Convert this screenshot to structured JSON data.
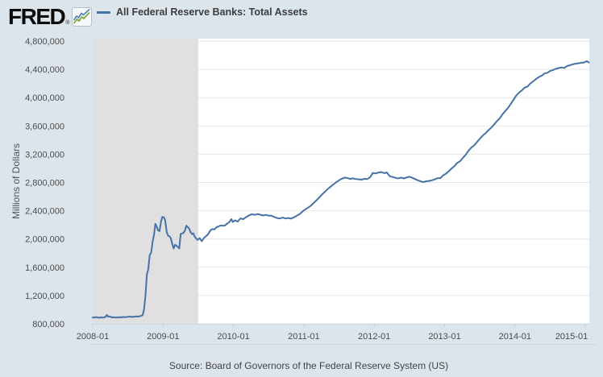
{
  "header": {
    "logo_text": "FRED",
    "logo_registered": "®",
    "legend": {
      "series_label": "All Federal Reserve Banks: Total Assets"
    }
  },
  "footer": {
    "source_text": "Source: Board of Governors of the Federal Reserve System (US)"
  },
  "chart_data": {
    "type": "line",
    "title": "All Federal Reserve Banks: Total Assets",
    "ylabel": "Millions of Dollars",
    "xlabel": "",
    "x_unit": "decimal_year",
    "xlim": [
      2008.0,
      2015.06
    ],
    "ylim": [
      800000,
      4800000
    ],
    "grid": true,
    "legend_position": "top-left",
    "colors": {
      "line": "#4572a7",
      "recession_band": "#e0e0e0",
      "gridline": "#e6e6e6",
      "plot_bg": "#ffffff",
      "page_bg": "#dce4ec",
      "axis_line": "#cdd6de",
      "tick": "#c3ced9",
      "tick_label": "#4d4d4d",
      "bottom_rule": "#cbd7e1"
    },
    "y_ticks": [
      {
        "v": 800000,
        "label": "800,000"
      },
      {
        "v": 1200000,
        "label": "1,200,000"
      },
      {
        "v": 1600000,
        "label": "1,600,000"
      },
      {
        "v": 2000000,
        "label": "2,000,000"
      },
      {
        "v": 2400000,
        "label": "2,400,000"
      },
      {
        "v": 2800000,
        "label": "2,800,000"
      },
      {
        "v": 3200000,
        "label": "3,200,000"
      },
      {
        "v": 3600000,
        "label": "3,600,000"
      },
      {
        "v": 4000000,
        "label": "4,000,000"
      },
      {
        "v": 4400000,
        "label": "4,400,000"
      },
      {
        "v": 4800000,
        "label": "4,800,000"
      }
    ],
    "x_ticks": [
      {
        "t": 2008.0,
        "label": "2008-01"
      },
      {
        "t": 2009.0,
        "label": "2009-01"
      },
      {
        "t": 2010.0,
        "label": "2010-01"
      },
      {
        "t": 2011.0,
        "label": "2011-01"
      },
      {
        "t": 2012.0,
        "label": "2012-01"
      },
      {
        "t": 2013.0,
        "label": "2013-01"
      },
      {
        "t": 2014.0,
        "label": "2014-01"
      },
      {
        "t": 2015.0,
        "label": "2015-01"
      }
    ],
    "recession_bands": [
      {
        "start": 2007.917,
        "end": 2009.5
      }
    ],
    "series": [
      {
        "name": "All Federal Reserve Banks: Total Assets",
        "color": "#4572a7",
        "points": [
          [
            2008.0,
            891000
          ],
          [
            2008.02,
            888000
          ],
          [
            2008.04,
            896000
          ],
          [
            2008.06,
            891000
          ],
          [
            2008.08,
            889000
          ],
          [
            2008.1,
            886000
          ],
          [
            2008.12,
            893000
          ],
          [
            2008.14,
            888000
          ],
          [
            2008.16,
            891000
          ],
          [
            2008.18,
            897000
          ],
          [
            2008.2,
            925000
          ],
          [
            2008.22,
            901000
          ],
          [
            2008.24,
            905000
          ],
          [
            2008.26,
            896000
          ],
          [
            2008.28,
            891000
          ],
          [
            2008.3,
            894000
          ],
          [
            2008.32,
            889000
          ],
          [
            2008.34,
            893000
          ],
          [
            2008.36,
            890000
          ],
          [
            2008.38,
            894000
          ],
          [
            2008.41,
            892000
          ],
          [
            2008.44,
            897000
          ],
          [
            2008.47,
            894000
          ],
          [
            2008.5,
            900000
          ],
          [
            2008.53,
            903000
          ],
          [
            2008.56,
            898000
          ],
          [
            2008.59,
            901000
          ],
          [
            2008.62,
            906000
          ],
          [
            2008.65,
            903000
          ],
          [
            2008.68,
            909000
          ],
          [
            2008.71,
            924000
          ],
          [
            2008.73,
            1004000
          ],
          [
            2008.75,
            1208000
          ],
          [
            2008.77,
            1499000
          ],
          [
            2008.79,
            1576000
          ],
          [
            2008.81,
            1774000
          ],
          [
            2008.83,
            1804000
          ],
          [
            2008.85,
            1954000
          ],
          [
            2008.87,
            2056000
          ],
          [
            2008.89,
            2214000
          ],
          [
            2008.91,
            2172000
          ],
          [
            2008.93,
            2121000
          ],
          [
            2008.95,
            2112000
          ],
          [
            2008.97,
            2245000
          ],
          [
            2008.99,
            2312000
          ],
          [
            2009.01,
            2308000
          ],
          [
            2009.03,
            2266000
          ],
          [
            2009.05,
            2104000
          ],
          [
            2009.07,
            2049000
          ],
          [
            2009.09,
            2038000
          ],
          [
            2009.11,
            2012000
          ],
          [
            2009.13,
            1932000
          ],
          [
            2009.15,
            1866000
          ],
          [
            2009.17,
            1919000
          ],
          [
            2009.19,
            1903000
          ],
          [
            2009.21,
            1888000
          ],
          [
            2009.23,
            1867000
          ],
          [
            2009.25,
            2071000
          ],
          [
            2009.27,
            2078000
          ],
          [
            2009.29,
            2087000
          ],
          [
            2009.31,
            2120000
          ],
          [
            2009.33,
            2189000
          ],
          [
            2009.35,
            2169000
          ],
          [
            2009.37,
            2148000
          ],
          [
            2009.39,
            2100000
          ],
          [
            2009.41,
            2069000
          ],
          [
            2009.43,
            2081000
          ],
          [
            2009.45,
            2031000
          ],
          [
            2009.47,
            2009000
          ],
          [
            2009.49,
            1988000
          ],
          [
            2009.52,
            2012000
          ],
          [
            2009.55,
            1968000
          ],
          [
            2009.58,
            2014000
          ],
          [
            2009.61,
            2041000
          ],
          [
            2009.64,
            2069000
          ],
          [
            2009.67,
            2119000
          ],
          [
            2009.7,
            2142000
          ],
          [
            2009.73,
            2136000
          ],
          [
            2009.76,
            2167000
          ],
          [
            2009.79,
            2179000
          ],
          [
            2009.82,
            2192000
          ],
          [
            2009.85,
            2187000
          ],
          [
            2009.88,
            2193000
          ],
          [
            2009.91,
            2217000
          ],
          [
            2009.94,
            2239000
          ],
          [
            2009.97,
            2282000
          ],
          [
            2009.99,
            2241000
          ],
          [
            2010.02,
            2264000
          ],
          [
            2010.06,
            2246000
          ],
          [
            2010.1,
            2292000
          ],
          [
            2010.14,
            2281000
          ],
          [
            2010.18,
            2309000
          ],
          [
            2010.22,
            2334000
          ],
          [
            2010.26,
            2351000
          ],
          [
            2010.3,
            2341000
          ],
          [
            2010.34,
            2353000
          ],
          [
            2010.38,
            2344000
          ],
          [
            2010.42,
            2333000
          ],
          [
            2010.46,
            2342000
          ],
          [
            2010.5,
            2331000
          ],
          [
            2010.54,
            2329000
          ],
          [
            2010.58,
            2312000
          ],
          [
            2010.62,
            2296000
          ],
          [
            2010.66,
            2291000
          ],
          [
            2010.7,
            2303000
          ],
          [
            2010.74,
            2289000
          ],
          [
            2010.78,
            2297000
          ],
          [
            2010.82,
            2288000
          ],
          [
            2010.86,
            2308000
          ],
          [
            2010.9,
            2331000
          ],
          [
            2010.94,
            2353000
          ],
          [
            2010.98,
            2389000
          ],
          [
            2011.02,
            2418000
          ],
          [
            2011.06,
            2443000
          ],
          [
            2011.1,
            2471000
          ],
          [
            2011.14,
            2509000
          ],
          [
            2011.18,
            2547000
          ],
          [
            2011.22,
            2588000
          ],
          [
            2011.26,
            2631000
          ],
          [
            2011.3,
            2668000
          ],
          [
            2011.34,
            2708000
          ],
          [
            2011.38,
            2741000
          ],
          [
            2011.42,
            2771000
          ],
          [
            2011.46,
            2803000
          ],
          [
            2011.5,
            2831000
          ],
          [
            2011.54,
            2852000
          ],
          [
            2011.58,
            2869000
          ],
          [
            2011.62,
            2861000
          ],
          [
            2011.66,
            2850000
          ],
          [
            2011.7,
            2858000
          ],
          [
            2011.74,
            2848000
          ],
          [
            2011.78,
            2845000
          ],
          [
            2011.82,
            2840000
          ],
          [
            2011.86,
            2851000
          ],
          [
            2011.9,
            2848000
          ],
          [
            2011.94,
            2872000
          ],
          [
            2011.98,
            2935000
          ],
          [
            2012.02,
            2928000
          ],
          [
            2012.06,
            2940000
          ],
          [
            2012.1,
            2948000
          ],
          [
            2012.14,
            2932000
          ],
          [
            2012.18,
            2941000
          ],
          [
            2012.22,
            2889000
          ],
          [
            2012.26,
            2878000
          ],
          [
            2012.3,
            2866000
          ],
          [
            2012.34,
            2857000
          ],
          [
            2012.38,
            2870000
          ],
          [
            2012.42,
            2857000
          ],
          [
            2012.46,
            2871000
          ],
          [
            2012.5,
            2881000
          ],
          [
            2012.54,
            2866000
          ],
          [
            2012.58,
            2849000
          ],
          [
            2012.62,
            2831000
          ],
          [
            2012.66,
            2816000
          ],
          [
            2012.7,
            2804000
          ],
          [
            2012.74,
            2818000
          ],
          [
            2012.78,
            2822000
          ],
          [
            2012.82,
            2831000
          ],
          [
            2012.86,
            2843000
          ],
          [
            2012.9,
            2861000
          ],
          [
            2012.94,
            2862000
          ],
          [
            2012.98,
            2901000
          ],
          [
            2013.02,
            2924000
          ],
          [
            2013.06,
            2959000
          ],
          [
            2013.1,
            2998000
          ],
          [
            2013.14,
            3031000
          ],
          [
            2013.18,
            3077000
          ],
          [
            2013.22,
            3101000
          ],
          [
            2013.26,
            3148000
          ],
          [
            2013.3,
            3192000
          ],
          [
            2013.34,
            3249000
          ],
          [
            2013.38,
            3293000
          ],
          [
            2013.42,
            3325000
          ],
          [
            2013.46,
            3372000
          ],
          [
            2013.5,
            3417000
          ],
          [
            2013.54,
            3461000
          ],
          [
            2013.58,
            3494000
          ],
          [
            2013.62,
            3536000
          ],
          [
            2013.66,
            3572000
          ],
          [
            2013.7,
            3616000
          ],
          [
            2013.74,
            3664000
          ],
          [
            2013.78,
            3704000
          ],
          [
            2013.82,
            3761000
          ],
          [
            2013.86,
            3809000
          ],
          [
            2013.9,
            3853000
          ],
          [
            2013.94,
            3912000
          ],
          [
            2013.98,
            3971000
          ],
          [
            2014.02,
            4032000
          ],
          [
            2014.06,
            4073000
          ],
          [
            2014.1,
            4102000
          ],
          [
            2014.14,
            4142000
          ],
          [
            2014.18,
            4158000
          ],
          [
            2014.22,
            4202000
          ],
          [
            2014.26,
            4231000
          ],
          [
            2014.3,
            4263000
          ],
          [
            2014.34,
            4292000
          ],
          [
            2014.38,
            4311000
          ],
          [
            2014.42,
            4342000
          ],
          [
            2014.46,
            4351000
          ],
          [
            2014.5,
            4377000
          ],
          [
            2014.54,
            4390000
          ],
          [
            2014.58,
            4407000
          ],
          [
            2014.62,
            4418000
          ],
          [
            2014.66,
            4427000
          ],
          [
            2014.7,
            4419000
          ],
          [
            2014.74,
            4447000
          ],
          [
            2014.78,
            4458000
          ],
          [
            2014.82,
            4471000
          ],
          [
            2014.86,
            4481000
          ],
          [
            2014.9,
            4486000
          ],
          [
            2014.94,
            4493000
          ],
          [
            2014.98,
            4497000
          ],
          [
            2015.02,
            4516000
          ],
          [
            2015.05,
            4498000
          ]
        ]
      }
    ]
  }
}
